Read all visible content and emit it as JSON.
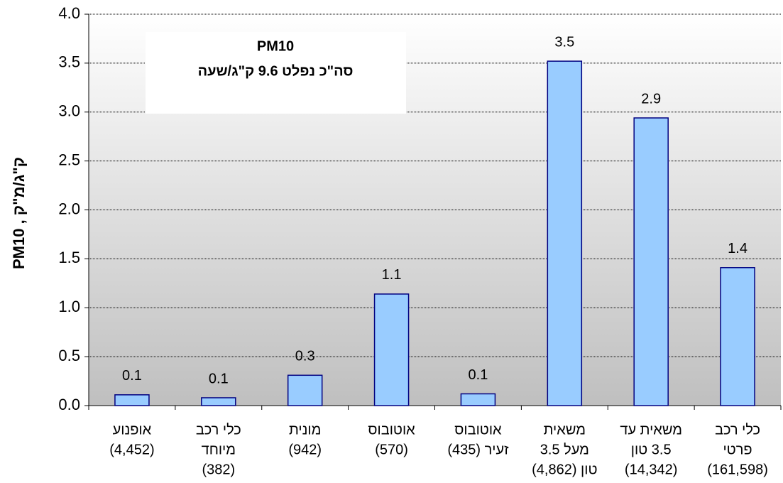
{
  "chart_data": {
    "type": "bar",
    "title": "PM10",
    "subtitle": "סה\"כ נפלט  9.6 ק\"ג/שעה",
    "y_label": "ק\"ג/מ\"ק , PM10",
    "categories": [
      [
        "אופנוע",
        "(4,452)"
      ],
      [
        "כלי רכב",
        "מיוחד",
        "(382)"
      ],
      [
        "מונית",
        "(942)"
      ],
      [
        "אוטובוס",
        "(570)"
      ],
      [
        "אוטובוס",
        "זעיר (435)"
      ],
      [
        "משאית",
        "מעל 3.5",
        "טון (4,862)"
      ],
      [
        "משאית עד",
        "3.5 טון",
        "(14,342)"
      ],
      [
        "כלי רכב",
        "פרטי",
        "(161,598)"
      ]
    ],
    "values": [
      0.11,
      0.08,
      0.31,
      1.14,
      0.12,
      3.52,
      2.94,
      1.41
    ],
    "value_labels": [
      "0.1",
      "0.1",
      "0.3",
      "1.1",
      "0.1",
      "3.5",
      "2.9",
      "1.4"
    ],
    "color": "#99ccff",
    "ylim": [
      0,
      4
    ],
    "yticks": [
      {
        "value": 0,
        "label": "0.0"
      },
      0.5,
      {
        "value": 1,
        "label": "1.0"
      },
      1.5,
      {
        "value": 2,
        "label": "2.0"
      },
      2.5,
      {
        "value": 3,
        "label": "3.0"
      },
      3.5,
      {
        "value": 4,
        "label": "4.0"
      }
    ],
    "grid": true
  }
}
